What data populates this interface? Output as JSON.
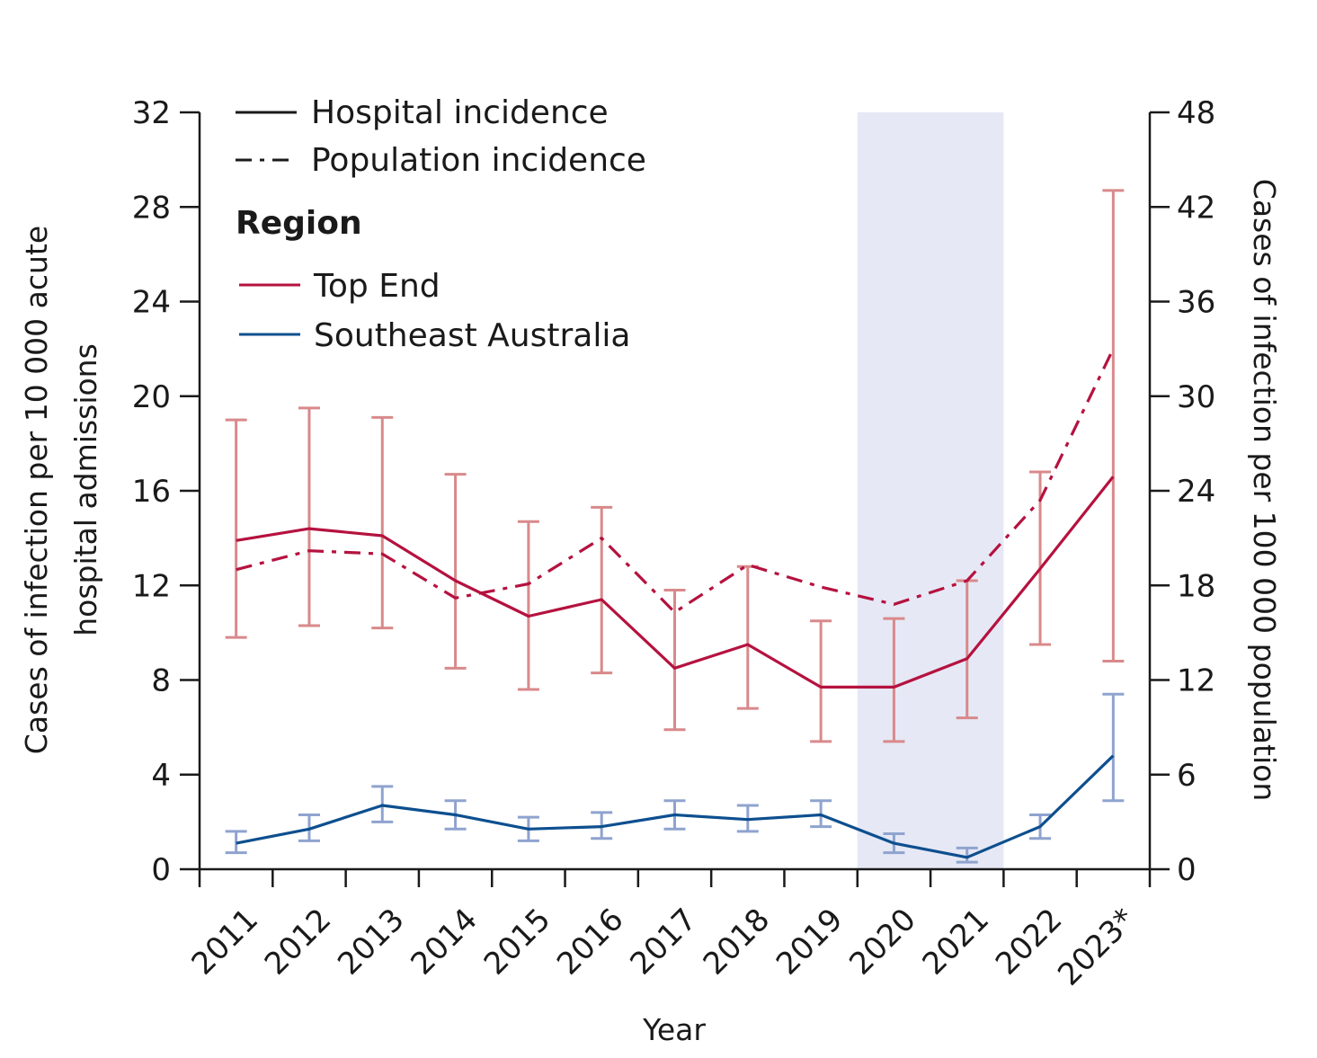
{
  "chart_data": {
    "type": "line",
    "categories": [
      "2011",
      "2012",
      "2013",
      "2014",
      "2015",
      "2016",
      "2017",
      "2018",
      "2019",
      "2020",
      "2021",
      "2022",
      "2023*"
    ],
    "xlabel": "Year",
    "ylabel_left": [
      "Cases of infection per 10 000 acute",
      "hospital admissions"
    ],
    "ylabel_right": "Cases of infection per 100 000 population",
    "ylim_left": [
      0,
      32
    ],
    "ylim_right": [
      0,
      48
    ],
    "yticks_left": [
      "0",
      "4",
      "8",
      "12",
      "16",
      "20",
      "24",
      "28",
      "32"
    ],
    "yticks_right": [
      "0",
      "6",
      "12",
      "18",
      "24",
      "30",
      "36",
      "42",
      "48"
    ],
    "shaded_years": [
      "2020",
      "2021"
    ],
    "legend": {
      "hospital_label": "Hospital incidence",
      "population_label": "Population incidence",
      "region_heading": "Region",
      "top_end_label": "Top End",
      "southeast_label": "Southeast Australia"
    },
    "colors": {
      "top_end": "#b5123f",
      "top_end_error": "#d9898b",
      "southeast": "#0d4f8f",
      "southeast_error": "#8fa3cf",
      "shade": "#e6e8f5"
    },
    "series": [
      {
        "name": "Top End",
        "measure": "Hospital incidence",
        "axis": "left",
        "values": [
          13.9,
          14.4,
          14.1,
          12.2,
          10.7,
          11.4,
          8.5,
          9.5,
          7.7,
          7.7,
          8.9,
          12.7,
          16.6
        ],
        "ci_low": [
          9.8,
          10.3,
          10.2,
          8.5,
          7.6,
          8.3,
          5.9,
          6.8,
          5.4,
          5.4,
          6.4,
          9.5,
          8.8
        ],
        "ci_high": [
          19.0,
          19.5,
          19.1,
          16.7,
          14.7,
          15.3,
          11.8,
          12.8,
          10.5,
          10.6,
          12.2,
          16.8,
          28.7
        ]
      },
      {
        "name": "Top End",
        "measure": "Population incidence",
        "axis": "right",
        "values": [
          19.0,
          20.2,
          20.0,
          17.2,
          18.1,
          21.0,
          16.3,
          19.3,
          17.9,
          16.8,
          18.3,
          23.4,
          33.0
        ]
      },
      {
        "name": "Southeast Australia",
        "measure": "Hospital incidence",
        "axis": "left",
        "values": [
          1.1,
          1.7,
          2.7,
          2.3,
          1.7,
          1.8,
          2.3,
          2.1,
          2.3,
          1.1,
          0.5,
          1.8,
          4.8
        ],
        "ci_low": [
          0.7,
          1.2,
          2.0,
          1.7,
          1.2,
          1.3,
          1.7,
          1.6,
          1.8,
          0.7,
          0.3,
          1.3,
          2.9
        ],
        "ci_high": [
          1.6,
          2.3,
          3.5,
          2.9,
          2.2,
          2.4,
          2.9,
          2.7,
          2.9,
          1.5,
          0.9,
          2.3,
          7.4
        ]
      }
    ]
  }
}
